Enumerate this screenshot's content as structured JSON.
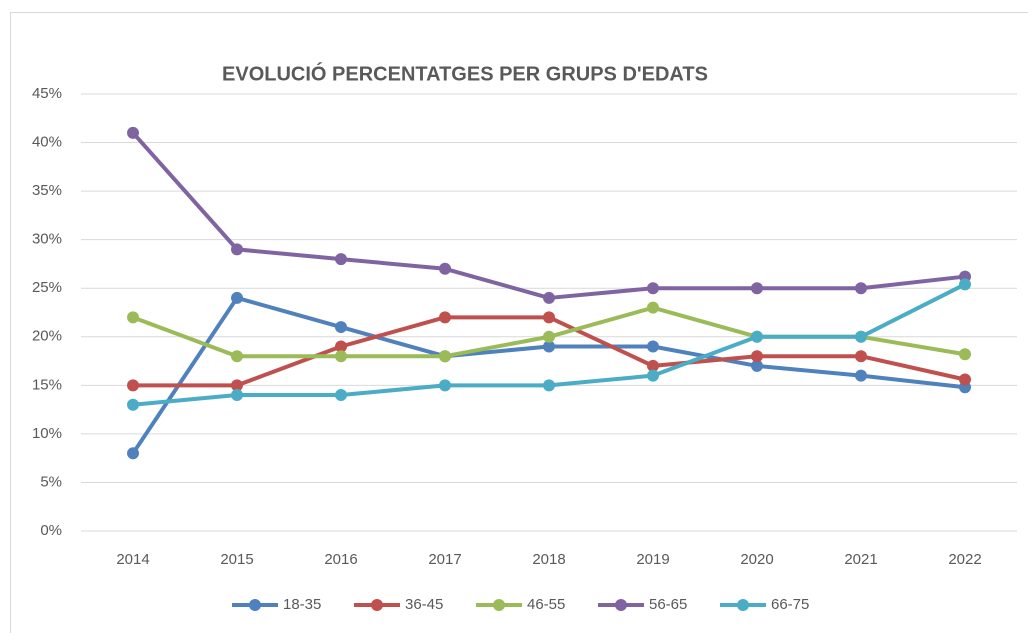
{
  "chart_data": {
    "type": "line",
    "title": "EVOLUCIÓ PERCENTATGES PER GRUPS D'EDATS",
    "categories": [
      "2014",
      "2015",
      "2016",
      "2017",
      "2018",
      "2019",
      "2020",
      "2021",
      "2022"
    ],
    "series": [
      {
        "name": "18-35",
        "color": "#4f81bd",
        "values": [
          8,
          24,
          21,
          18,
          19,
          19,
          17,
          16,
          14.8
        ]
      },
      {
        "name": "36-45",
        "color": "#c0504d",
        "values": [
          15,
          15,
          19,
          22,
          22,
          17,
          18,
          18,
          15.6
        ]
      },
      {
        "name": "46-55",
        "color": "#9bbb59",
        "values": [
          22,
          18,
          18,
          18,
          20,
          23,
          20,
          20,
          18.2
        ]
      },
      {
        "name": "56-65",
        "color": "#8064a2",
        "values": [
          41,
          29,
          28,
          27,
          24,
          25,
          25,
          25,
          26.2
        ]
      },
      {
        "name": "66-75",
        "color": "#4bacc6",
        "values": [
          13,
          14,
          14,
          15,
          15,
          16,
          20,
          20,
          25.4
        ]
      }
    ],
    "ylim": [
      0,
      45
    ],
    "yticks": [
      {
        "value": 0,
        "label": "0%"
      },
      {
        "value": 5,
        "label": "5%"
      },
      {
        "value": 10,
        "label": "10%"
      },
      {
        "value": 15,
        "label": "15%"
      },
      {
        "value": 20,
        "label": "20%"
      },
      {
        "value": 25,
        "label": "25%"
      },
      {
        "value": 30,
        "label": "30%"
      },
      {
        "value": 35,
        "label": "35%"
      },
      {
        "value": 40,
        "label": "40%"
      },
      {
        "value": 45,
        "label": "45%"
      }
    ],
    "grid": true,
    "legend": "bottom"
  }
}
